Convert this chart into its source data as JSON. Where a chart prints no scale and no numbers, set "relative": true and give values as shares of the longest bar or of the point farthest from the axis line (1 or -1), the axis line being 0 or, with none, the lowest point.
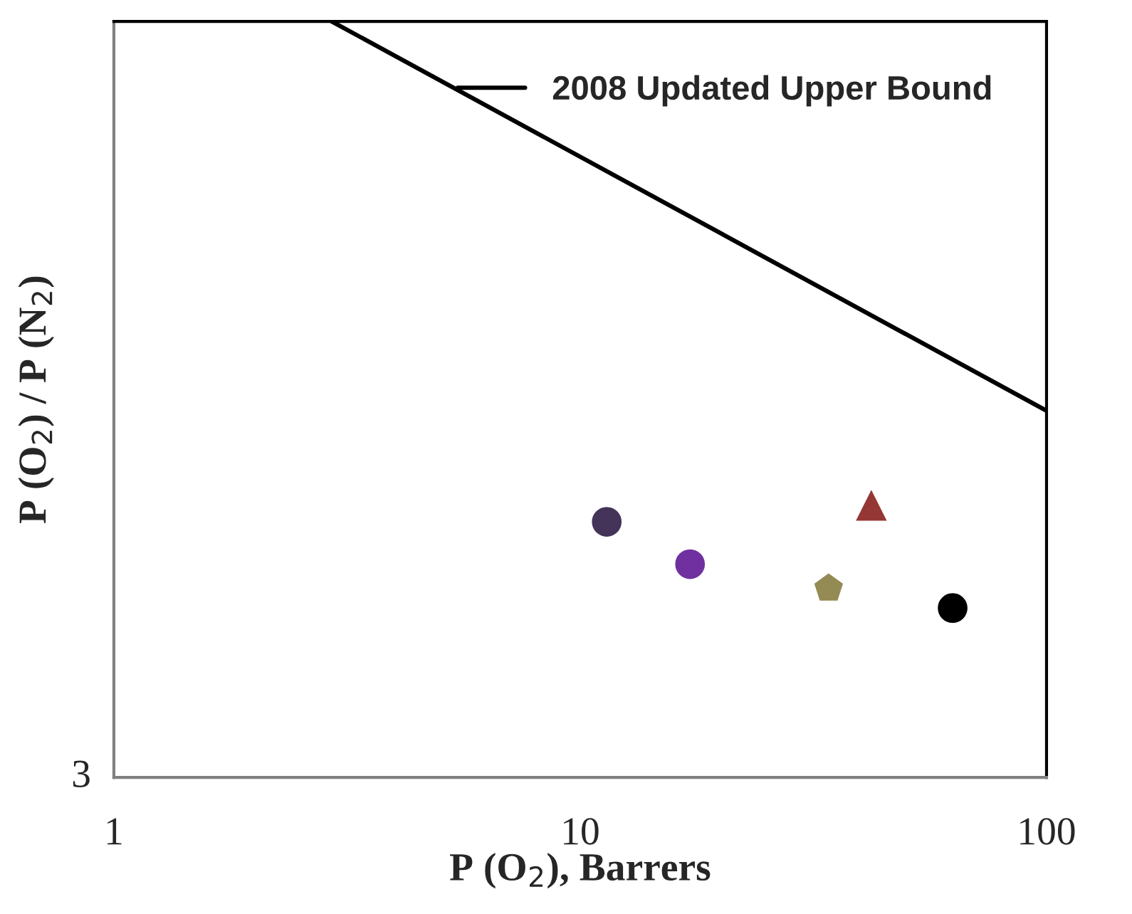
{
  "chart_data": {
    "type": "scatter",
    "xlabel": "P (O$_{2}$), Barrers",
    "ylabel": "P (O$_{2}$) / P (N$_{2}$)",
    "log": "x",
    "relative": true,
    "xlim": [
      1,
      100
    ],
    "xticks": [
      1,
      10,
      100
    ],
    "series": [
      {
        "type": "line",
        "name": "2008 Updated Upper Bound",
        "color": "#000000",
        "x": [
          2.93,
          100
        ],
        "values": [
          1,
          0.485
        ],
        "marker": "none"
      },
      {
        "color": "#44345a",
        "x": [
          11.4
        ],
        "values": [
          0.338
        ],
        "marker": "circle"
      },
      {
        "color": "#7030a0",
        "x": [
          17.2
        ],
        "values": [
          0.282
        ],
        "marker": "circle"
      },
      {
        "color": "#948a54",
        "x": [
          34.1
        ],
        "values": [
          0.25
        ]
      },
      {
        "color": "#953735",
        "x": [
          42.1
        ],
        "values": [
          0.359
        ],
        "marker": "triangle"
      },
      {
        "color": "#000000",
        "x": [
          62.9
        ],
        "values": [
          0.224
        ],
        "marker": "circle"
      }
    ],
    "annotations": [
      "3"
    ],
    "legend": "top right",
    "grid": false
  }
}
